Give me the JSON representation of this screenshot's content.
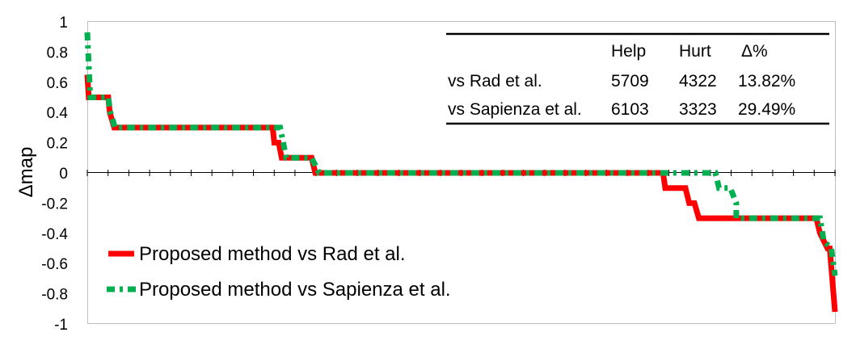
{
  "chart_data": {
    "type": "line",
    "title": "",
    "xlabel": "",
    "ylabel": "Δmap",
    "ylim": [
      -1,
      1
    ],
    "yticks": [
      "1",
      "0.8",
      "0.6",
      "0.4",
      "0.2",
      "0",
      "-0.2",
      "-0.4",
      "-0.6",
      "-0.8",
      "-1"
    ],
    "ytick_values": [
      1,
      0.8,
      0.6,
      0.4,
      0.2,
      0,
      -0.2,
      -0.4,
      -0.6,
      -0.8,
      -1
    ],
    "x_tick_count": 37,
    "grid": false,
    "legend_position": "bottom-left",
    "series": [
      {
        "name": "Proposed method vs Rad et al.",
        "color": "#ff0000",
        "style": "solid",
        "x": [
          0.0,
          0.002,
          0.005,
          0.02,
          0.028,
          0.03,
          0.036,
          0.248,
          0.25,
          0.256,
          0.26,
          0.268,
          0.3,
          0.305,
          0.31,
          0.77,
          0.773,
          0.8,
          0.805,
          0.812,
          0.818,
          0.82,
          0.975,
          0.98,
          0.99,
          0.993,
          1.0
        ],
        "y": [
          0.65,
          0.5,
          0.5,
          0.5,
          0.5,
          0.4,
          0.3,
          0.3,
          0.2,
          0.2,
          0.1,
          0.1,
          0.1,
          0.0,
          0.0,
          0.0,
          -0.1,
          -0.1,
          -0.2,
          -0.2,
          -0.3,
          -0.3,
          -0.3,
          -0.4,
          -0.5,
          -0.5,
          -0.92
        ]
      },
      {
        "name": "Proposed method vs Sapienza et al.",
        "color": "#00b050",
        "style": "dashed",
        "x": [
          0.0,
          0.003,
          0.004,
          0.028,
          0.031,
          0.037,
          0.258,
          0.262,
          0.266,
          0.3,
          0.31,
          0.81,
          0.815,
          0.82,
          0.84,
          0.845,
          0.86,
          0.868,
          0.868,
          0.98,
          0.985,
          0.995,
          1.0
        ],
        "y": [
          0.93,
          0.6,
          0.5,
          0.5,
          0.4,
          0.3,
          0.3,
          0.2,
          0.1,
          0.1,
          0.0,
          0.0,
          0.0,
          0.0,
          0.0,
          -0.1,
          -0.1,
          -0.2,
          -0.3,
          -0.3,
          -0.45,
          -0.5,
          -0.68
        ]
      }
    ],
    "table": {
      "headers": [
        "",
        "Help",
        "Hurt",
        "Δ%"
      ],
      "rows": [
        [
          "vs Rad et al.",
          "5709",
          "4322",
          "13.82%"
        ],
        [
          "vs Sapienza et al.",
          "6103",
          "3323",
          "29.49%"
        ]
      ]
    }
  }
}
